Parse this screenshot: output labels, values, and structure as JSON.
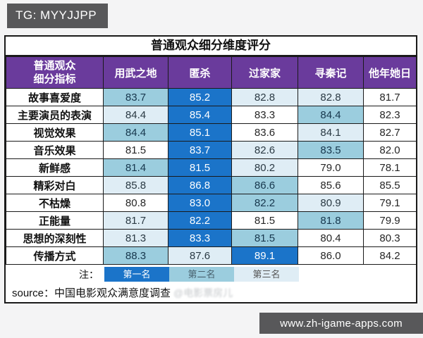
{
  "badge": {
    "label": "TG: MYYJJPP"
  },
  "footer_bar": {
    "url": "www.zh-igame-apps.com"
  },
  "colors": {
    "rank1": "#1B74C9",
    "rank2": "#9BCDDE",
    "rank3": "#DFEDF5",
    "header_purple": "#6A3B9C",
    "badge_gray": "#58585A"
  },
  "chart_data": {
    "type": "table",
    "title": "普通观众细分维度评分",
    "corner_header": [
      "普通观众",
      "细分指标"
    ],
    "columns": [
      "用武之地",
      "匿杀",
      "过家家",
      "寻秦记",
      "他年她日"
    ],
    "rows": [
      {
        "label": "故事喜爱度",
        "values": [
          "83.7",
          "85.2",
          "82.8",
          "82.8",
          "81.7"
        ],
        "ranks": [
          2,
          1,
          3,
          3,
          0
        ]
      },
      {
        "label": "主要演员的表演",
        "values": [
          "84.4",
          "85.4",
          "83.3",
          "84.4",
          "82.3"
        ],
        "ranks": [
          3,
          1,
          0,
          2,
          0
        ]
      },
      {
        "label": "视觉效果",
        "values": [
          "84.4",
          "85.1",
          "83.6",
          "84.1",
          "82.7"
        ],
        "ranks": [
          2,
          1,
          0,
          3,
          0
        ]
      },
      {
        "label": "音乐效果",
        "values": [
          "81.5",
          "83.7",
          "82.6",
          "83.5",
          "82.0"
        ],
        "ranks": [
          0,
          1,
          3,
          2,
          0
        ]
      },
      {
        "label": "新鲜感",
        "values": [
          "81.4",
          "81.5",
          "80.2",
          "79.0",
          "78.1"
        ],
        "ranks": [
          2,
          1,
          3,
          0,
          0
        ]
      },
      {
        "label": "精彩对白",
        "values": [
          "85.8",
          "86.8",
          "86.6",
          "85.6",
          "85.5"
        ],
        "ranks": [
          3,
          1,
          2,
          0,
          0
        ]
      },
      {
        "label": "不枯燥",
        "values": [
          "80.8",
          "83.0",
          "82.2",
          "80.9",
          "79.1"
        ],
        "ranks": [
          0,
          1,
          2,
          3,
          0
        ]
      },
      {
        "label": "正能量",
        "values": [
          "81.7",
          "82.2",
          "81.5",
          "81.8",
          "79.9"
        ],
        "ranks": [
          3,
          1,
          0,
          2,
          0
        ]
      },
      {
        "label": "思想的深刻性",
        "values": [
          "81.3",
          "83.3",
          "81.5",
          "80.4",
          "80.3"
        ],
        "ranks": [
          3,
          1,
          2,
          0,
          0
        ]
      },
      {
        "label": "传播方式",
        "values": [
          "88.3",
          "87.6",
          "89.1",
          "86.0",
          "84.2"
        ],
        "ranks": [
          2,
          3,
          1,
          0,
          0
        ]
      }
    ],
    "legend": {
      "note": "注：",
      "items": [
        "第一名",
        "第二名",
        "第三名"
      ]
    },
    "source": "source：中国电影观众满意度调查",
    "watermark": "@电影票房儿"
  }
}
